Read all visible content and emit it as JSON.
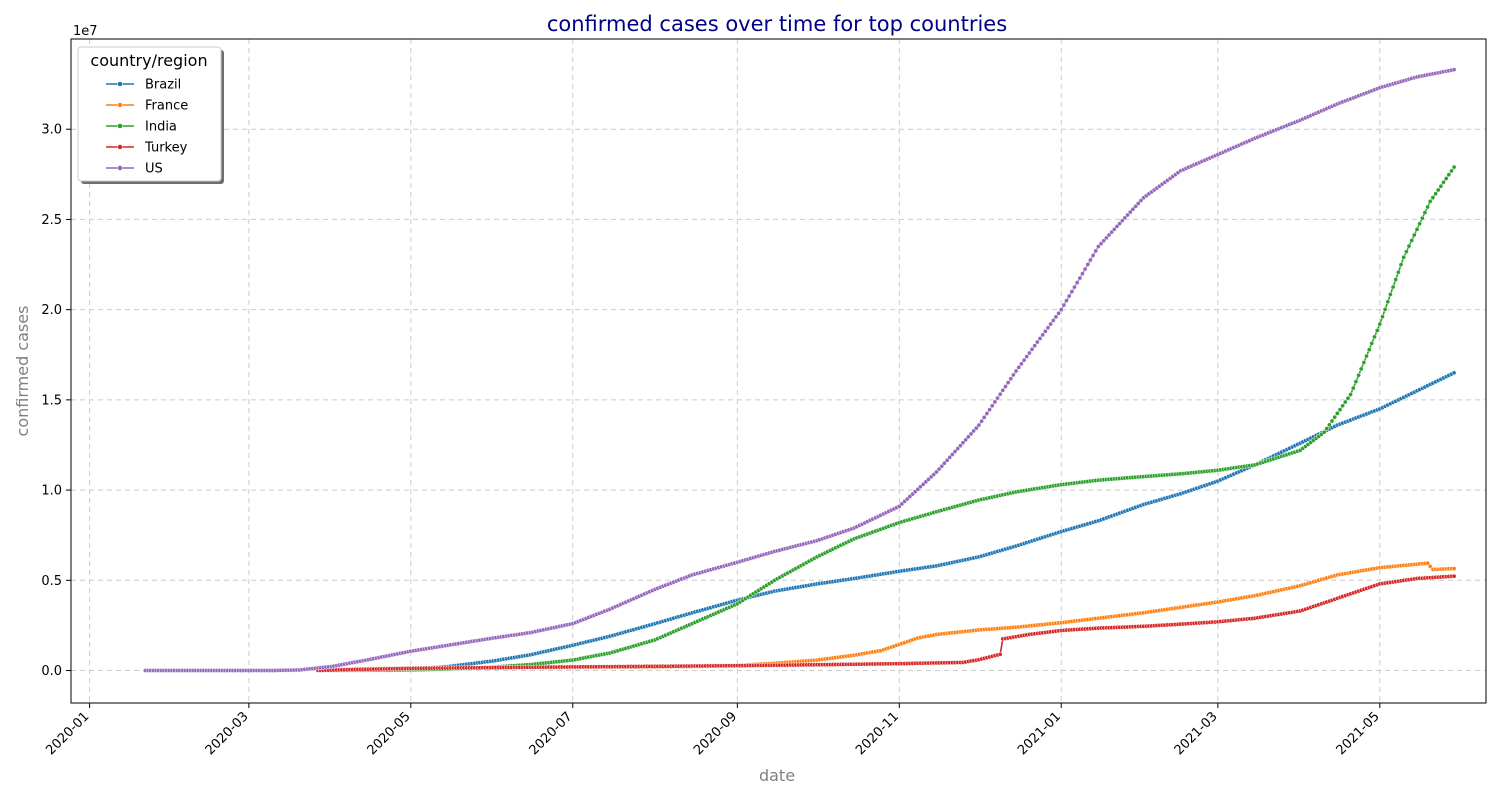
{
  "chart_data": {
    "type": "line",
    "title": "confirmed cases over time for top countries",
    "xlabel": "date",
    "ylabel": "confirmed cases",
    "y_offset_label": "1e7",
    "y_multiplier": 10000000,
    "xlim": [
      "2019-12-25",
      "2021-06-10"
    ],
    "ylim": [
      -0.18,
      3.5
    ],
    "grid": true,
    "legend": {
      "title": "country/region",
      "placement": "top-left"
    },
    "x_ticks": [
      {
        "date": "2020-01-01",
        "label": "2020-01"
      },
      {
        "date": "2020-03-01",
        "label": "2020-03"
      },
      {
        "date": "2020-05-01",
        "label": "2020-05"
      },
      {
        "date": "2020-07-01",
        "label": "2020-07"
      },
      {
        "date": "2020-09-01",
        "label": "2020-09"
      },
      {
        "date": "2020-11-01",
        "label": "2020-11"
      },
      {
        "date": "2021-01-01",
        "label": "2021-01"
      },
      {
        "date": "2021-03-01",
        "label": "2021-03"
      },
      {
        "date": "2021-05-01",
        "label": "2021-05"
      }
    ],
    "y_ticks": [
      {
        "value": 0.0,
        "label": "0.0"
      },
      {
        "value": 0.5,
        "label": "0.5"
      },
      {
        "value": 1.0,
        "label": "1.0"
      },
      {
        "value": 1.5,
        "label": "1.5"
      },
      {
        "value": 2.0,
        "label": "2.0"
      },
      {
        "value": 2.5,
        "label": "2.5"
      },
      {
        "value": 3.0,
        "label": "3.0"
      }
    ],
    "series": [
      {
        "name": "Brazil",
        "color": "#1f77b4",
        "points": [
          [
            "2020-03-27",
            0.0003
          ],
          [
            "2020-04-15",
            0.003
          ],
          [
            "2020-05-01",
            0.009
          ],
          [
            "2020-05-15",
            0.022
          ],
          [
            "2020-06-01",
            0.053
          ],
          [
            "2020-06-15",
            0.087
          ],
          [
            "2020-07-01",
            0.14
          ],
          [
            "2020-07-15",
            0.19
          ],
          [
            "2020-08-01",
            0.26
          ],
          [
            "2020-08-15",
            0.32
          ],
          [
            "2020-09-01",
            0.39
          ],
          [
            "2020-09-15",
            0.44
          ],
          [
            "2020-10-01",
            0.48
          ],
          [
            "2020-10-15",
            0.51
          ],
          [
            "2020-11-01",
            0.55
          ],
          [
            "2020-11-15",
            0.58
          ],
          [
            "2020-12-01",
            0.63
          ],
          [
            "2020-12-15",
            0.69
          ],
          [
            "2021-01-01",
            0.77
          ],
          [
            "2021-01-15",
            0.83
          ],
          [
            "2021-02-01",
            0.92
          ],
          [
            "2021-02-15",
            0.98
          ],
          [
            "2021-03-01",
            1.05
          ],
          [
            "2021-03-15",
            1.14
          ],
          [
            "2021-04-01",
            1.26
          ],
          [
            "2021-04-15",
            1.36
          ],
          [
            "2021-05-01",
            1.45
          ],
          [
            "2021-05-15",
            1.55
          ],
          [
            "2021-05-29",
            1.65
          ]
        ]
      },
      {
        "name": "France",
        "color": "#ff7f0e",
        "points": [
          [
            "2020-03-27",
            0.004
          ],
          [
            "2020-04-15",
            0.01
          ],
          [
            "2020-05-01",
            0.013
          ],
          [
            "2020-06-01",
            0.015
          ],
          [
            "2020-07-01",
            0.017
          ],
          [
            "2020-08-01",
            0.019
          ],
          [
            "2020-08-15",
            0.022
          ],
          [
            "2020-09-01",
            0.028
          ],
          [
            "2020-09-15",
            0.04
          ],
          [
            "2020-10-01",
            0.058
          ],
          [
            "2020-10-15",
            0.085
          ],
          [
            "2020-10-25",
            0.11
          ],
          [
            "2020-11-01",
            0.145
          ],
          [
            "2020-11-08",
            0.18
          ],
          [
            "2020-11-15",
            0.2
          ],
          [
            "2020-12-01",
            0.225
          ],
          [
            "2020-12-15",
            0.24
          ],
          [
            "2021-01-01",
            0.265
          ],
          [
            "2021-01-15",
            0.29
          ],
          [
            "2021-02-01",
            0.32
          ],
          [
            "2021-02-15",
            0.35
          ],
          [
            "2021-03-01",
            0.38
          ],
          [
            "2021-03-15",
            0.415
          ],
          [
            "2021-04-01",
            0.47
          ],
          [
            "2021-04-15",
            0.53
          ],
          [
            "2021-05-01",
            0.57
          ],
          [
            "2021-05-19",
            0.595
          ],
          [
            "2021-05-21",
            0.56
          ],
          [
            "2021-05-29",
            0.565
          ]
        ]
      },
      {
        "name": "India",
        "color": "#2ca02c",
        "points": [
          [
            "2020-03-27",
            0.0002
          ],
          [
            "2020-04-15",
            0.0015
          ],
          [
            "2020-05-01",
            0.0035
          ],
          [
            "2020-05-15",
            0.008
          ],
          [
            "2020-06-01",
            0.019
          ],
          [
            "2020-06-15",
            0.033
          ],
          [
            "2020-07-01",
            0.058
          ],
          [
            "2020-07-15",
            0.097
          ],
          [
            "2020-08-01",
            0.17
          ],
          [
            "2020-08-15",
            0.26
          ],
          [
            "2020-09-01",
            0.37
          ],
          [
            "2020-09-15",
            0.5
          ],
          [
            "2020-10-01",
            0.63
          ],
          [
            "2020-10-15",
            0.73
          ],
          [
            "2020-11-01",
            0.82
          ],
          [
            "2020-11-15",
            0.88
          ],
          [
            "2020-12-01",
            0.945
          ],
          [
            "2020-12-15",
            0.99
          ],
          [
            "2021-01-01",
            1.03
          ],
          [
            "2021-01-15",
            1.055
          ],
          [
            "2021-02-01",
            1.075
          ],
          [
            "2021-02-15",
            1.09
          ],
          [
            "2021-03-01",
            1.11
          ],
          [
            "2021-03-15",
            1.14
          ],
          [
            "2021-04-01",
            1.22
          ],
          [
            "2021-04-10",
            1.32
          ],
          [
            "2021-04-20",
            1.53
          ],
          [
            "2021-05-01",
            1.92
          ],
          [
            "2021-05-10",
            2.29
          ],
          [
            "2021-05-20",
            2.6
          ],
          [
            "2021-05-29",
            2.79
          ]
        ]
      },
      {
        "name": "Turkey",
        "color": "#d62728",
        "points": [
          [
            "2020-03-27",
            0.0005
          ],
          [
            "2020-04-15",
            0.007
          ],
          [
            "2020-05-01",
            0.012
          ],
          [
            "2020-06-01",
            0.016
          ],
          [
            "2020-07-01",
            0.02
          ],
          [
            "2020-08-01",
            0.023
          ],
          [
            "2020-09-01",
            0.027
          ],
          [
            "2020-10-01",
            0.032
          ],
          [
            "2020-11-01",
            0.038
          ],
          [
            "2020-11-25",
            0.045
          ],
          [
            "2020-12-01",
            0.06
          ],
          [
            "2020-12-09",
            0.09
          ],
          [
            "2020-12-10",
            0.175
          ],
          [
            "2020-12-20",
            0.2
          ],
          [
            "2021-01-01",
            0.222
          ],
          [
            "2021-01-15",
            0.235
          ],
          [
            "2021-02-01",
            0.245
          ],
          [
            "2021-02-15",
            0.257
          ],
          [
            "2021-03-01",
            0.27
          ],
          [
            "2021-03-15",
            0.29
          ],
          [
            "2021-04-01",
            0.33
          ],
          [
            "2021-04-15",
            0.4
          ],
          [
            "2021-05-01",
            0.48
          ],
          [
            "2021-05-15",
            0.51
          ],
          [
            "2021-05-29",
            0.523
          ]
        ]
      },
      {
        "name": "US",
        "color": "#9467bd",
        "points": [
          [
            "2020-01-22",
            0.0
          ],
          [
            "2020-02-15",
            0.0
          ],
          [
            "2020-03-10",
            0.0001
          ],
          [
            "2020-03-20",
            0.003
          ],
          [
            "2020-04-01",
            0.022
          ],
          [
            "2020-04-15",
            0.06
          ],
          [
            "2020-05-01",
            0.107
          ],
          [
            "2020-05-15",
            0.14
          ],
          [
            "2020-06-01",
            0.18
          ],
          [
            "2020-06-15",
            0.21
          ],
          [
            "2020-07-01",
            0.26
          ],
          [
            "2020-07-15",
            0.34
          ],
          [
            "2020-08-01",
            0.45
          ],
          [
            "2020-08-15",
            0.53
          ],
          [
            "2020-09-01",
            0.6
          ],
          [
            "2020-09-15",
            0.66
          ],
          [
            "2020-10-01",
            0.72
          ],
          [
            "2020-10-15",
            0.79
          ],
          [
            "2020-11-01",
            0.91
          ],
          [
            "2020-11-15",
            1.1
          ],
          [
            "2020-12-01",
            1.36
          ],
          [
            "2020-12-15",
            1.66
          ],
          [
            "2021-01-01",
            2.0
          ],
          [
            "2021-01-15",
            2.35
          ],
          [
            "2021-02-01",
            2.62
          ],
          [
            "2021-02-15",
            2.77
          ],
          [
            "2021-03-01",
            2.86
          ],
          [
            "2021-03-15",
            2.95
          ],
          [
            "2021-04-01",
            3.05
          ],
          [
            "2021-04-15",
            3.14
          ],
          [
            "2021-05-01",
            3.23
          ],
          [
            "2021-05-15",
            3.29
          ],
          [
            "2021-05-29",
            3.33
          ]
        ]
      }
    ]
  }
}
